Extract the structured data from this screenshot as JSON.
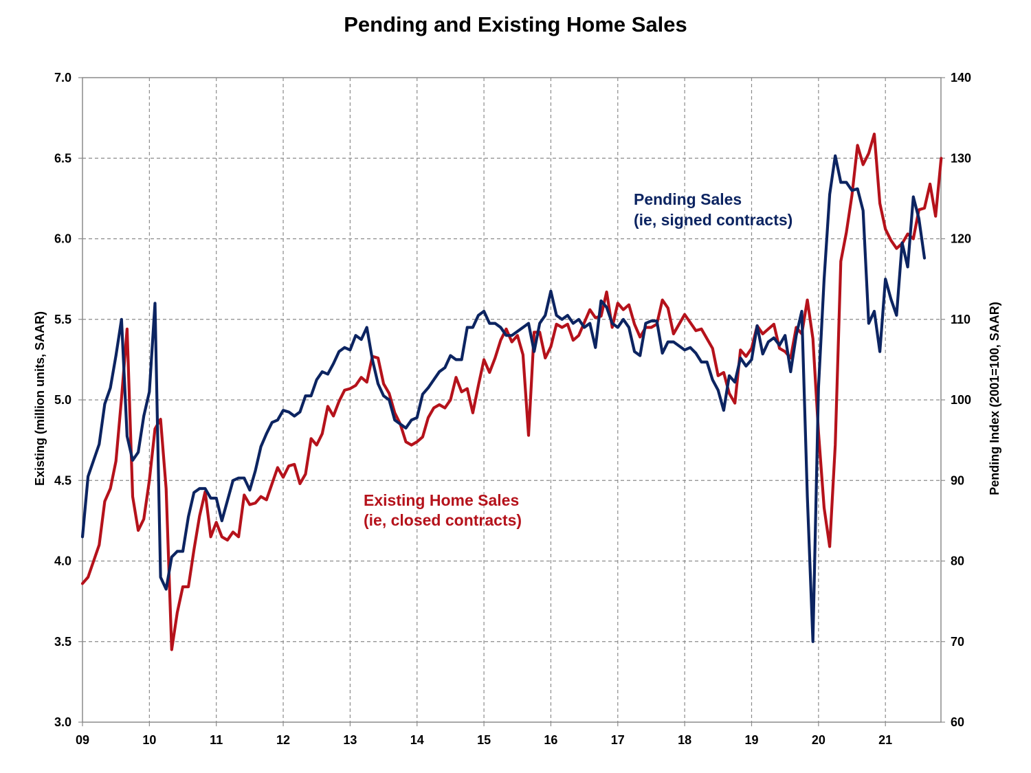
{
  "chart_data": {
    "type": "line",
    "title": "Pending and Existing Home Sales",
    "ylabel_left": "Existing (million units, SAAR)",
    "ylabel_right": "Pending Index (2001=100, SAAR)",
    "x_tick_labels": [
      "09",
      "10",
      "11",
      "12",
      "13",
      "14",
      "15",
      "16",
      "17",
      "18",
      "19",
      "20",
      "21"
    ],
    "x_range": [
      2009.0,
      2021.83
    ],
    "ylim_left": [
      3.0,
      7.0
    ],
    "ylim_right": [
      60,
      140
    ],
    "y_ticks_left": [
      "3.0",
      "3.5",
      "4.0",
      "4.5",
      "5.0",
      "5.5",
      "6.0",
      "6.5",
      "7.0"
    ],
    "y_ticks_right": [
      "60",
      "70",
      "80",
      "90",
      "100",
      "110",
      "120",
      "130",
      "140"
    ],
    "grid": true,
    "series": [
      {
        "name": "Pending Sales",
        "color": "#0c2461",
        "axis": "right",
        "x_start": 2009.0,
        "x_step_months": 1,
        "values": [
          83,
          90.5,
          92.5,
          94.5,
          99.5,
          101.5,
          105.5,
          110,
          95.5,
          92.5,
          93.5,
          98,
          101,
          112,
          78,
          76.5,
          80.5,
          81.2,
          81.2,
          85.5,
          88.5,
          89,
          89,
          87.8,
          87.8,
          85,
          87.5,
          90,
          90.3,
          90.3,
          88.8,
          91.2,
          94.2,
          95.8,
          97.2,
          97.5,
          98.7,
          98.5,
          98,
          98.5,
          100.5,
          100.5,
          102.5,
          103.5,
          103.2,
          104.5,
          106,
          106.5,
          106.2,
          108,
          107.5,
          109,
          105,
          102,
          100.5,
          100,
          97.5,
          97,
          96.5,
          97.5,
          97.8,
          100.7,
          101.5,
          102.5,
          103.5,
          104,
          105.5,
          105,
          105,
          109,
          109,
          110.5,
          111,
          109.5,
          109.5,
          109,
          108,
          108,
          108.5,
          109,
          109.5,
          106,
          109.5,
          110.5,
          113.5,
          110.5,
          110,
          110.5,
          109.5,
          110,
          109,
          109.5,
          106.5,
          112.3,
          111.5,
          109.5,
          109,
          110,
          109,
          106,
          105.5,
          109.5,
          109.8,
          109.8,
          105.8,
          107.2,
          107.2,
          106.7,
          106.2,
          106.5,
          105.8,
          104.7,
          104.7,
          102.5,
          101.2,
          98.7,
          103,
          102.2,
          105.2,
          104.2,
          105,
          109.2,
          105.7,
          107.2,
          107.7,
          106.8,
          108,
          103.5,
          108,
          111,
          88,
          70,
          101.5,
          115,
          125.5,
          130.3,
          127,
          127,
          126,
          126.2,
          123.5,
          109.5,
          111,
          106,
          115,
          112.5,
          110.5,
          119.5,
          116.5,
          125.2,
          122.5,
          117.6
        ]
      },
      {
        "name": "Existing Home Sales",
        "color": "#b5121b",
        "axis": "left",
        "x_start": 2009.0,
        "x_step_months": 1,
        "values": [
          3.86,
          3.9,
          4.0,
          4.1,
          4.37,
          4.45,
          4.62,
          5.01,
          5.44,
          4.4,
          4.19,
          4.26,
          4.5,
          4.82,
          4.88,
          4.45,
          3.45,
          3.68,
          3.84,
          3.84,
          4.07,
          4.28,
          4.43,
          4.15,
          4.24,
          4.15,
          4.13,
          4.18,
          4.15,
          4.41,
          4.35,
          4.36,
          4.4,
          4.38,
          4.48,
          4.58,
          4.52,
          4.59,
          4.6,
          4.48,
          4.54,
          4.76,
          4.72,
          4.79,
          4.96,
          4.9,
          4.99,
          5.06,
          5.07,
          5.09,
          5.14,
          5.11,
          5.27,
          5.26,
          5.1,
          5.04,
          4.92,
          4.85,
          4.74,
          4.72,
          4.74,
          4.77,
          4.89,
          4.95,
          4.97,
          4.95,
          5.0,
          5.14,
          5.05,
          5.07,
          4.92,
          5.09,
          5.25,
          5.17,
          5.26,
          5.37,
          5.44,
          5.36,
          5.4,
          5.28,
          4.78,
          5.42,
          5.42,
          5.26,
          5.33,
          5.47,
          5.45,
          5.47,
          5.37,
          5.4,
          5.48,
          5.56,
          5.51,
          5.52,
          5.67,
          5.45,
          5.6,
          5.56,
          5.59,
          5.47,
          5.39,
          5.45,
          5.45,
          5.47,
          5.62,
          5.57,
          5.41,
          5.47,
          5.53,
          5.48,
          5.43,
          5.44,
          5.38,
          5.32,
          5.15,
          5.17,
          5.04,
          4.98,
          5.31,
          5.27,
          5.32,
          5.46,
          5.41,
          5.44,
          5.47,
          5.32,
          5.3,
          5.26,
          5.45,
          5.41,
          5.62,
          5.38,
          4.8,
          4.33,
          4.09,
          4.72,
          5.86,
          6.04,
          6.27,
          6.58,
          6.46,
          6.53,
          6.65,
          6.22,
          6.06,
          5.99,
          5.94,
          5.97,
          6.03,
          6.0,
          6.18,
          6.19,
          6.34,
          6.14,
          6.5
        ]
      }
    ],
    "annotations": [
      {
        "line1": "Pending Sales",
        "line2": "(ie, signed contracts)",
        "color": "#0c2461"
      },
      {
        "line1": "Existing Home Sales",
        "line2": "(ie, closed contracts)",
        "color": "#b5121b"
      }
    ]
  }
}
